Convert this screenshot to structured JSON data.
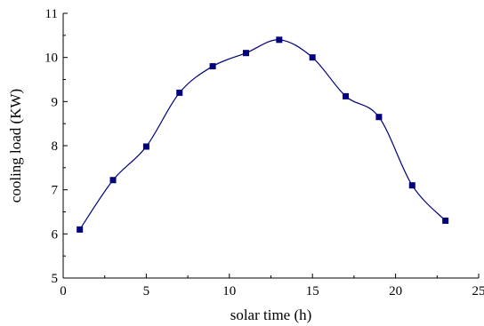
{
  "chart_data": {
    "type": "line",
    "title": "",
    "xlabel": "solar time (h)",
    "ylabel": "cooling load (KW)",
    "xlim": [
      0,
      25
    ],
    "ylim": [
      5,
      11
    ],
    "xticks": [
      0,
      5,
      10,
      15,
      20,
      25
    ],
    "yticks": [
      5,
      6,
      7,
      8,
      9,
      10,
      11
    ],
    "grid": false,
    "legend": "none",
    "series": [
      {
        "x": [
          1,
          3,
          5,
          7,
          9,
          11,
          13,
          15,
          17,
          19,
          21,
          23
        ],
        "y": [
          6.1,
          7.22,
          7.98,
          9.2,
          9.8,
          10.1,
          10.4,
          10.0,
          9.12,
          8.65,
          7.1,
          6.3
        ],
        "color": "#00007a",
        "marker": "square",
        "smooth": true
      }
    ]
  }
}
